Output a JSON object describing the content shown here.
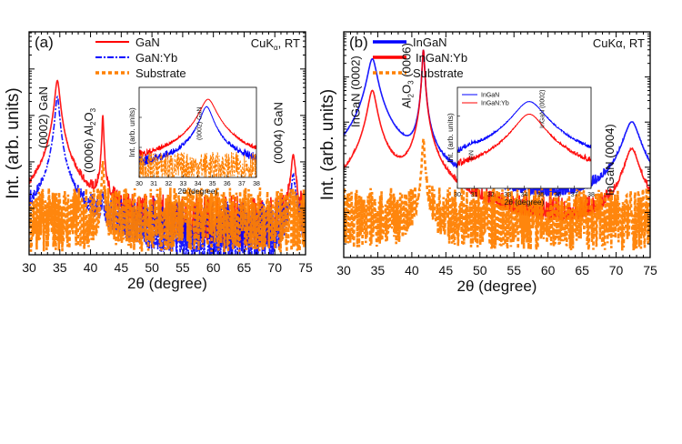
{
  "chart_data": [
    {
      "type": "line",
      "panel_label": "(a)",
      "condition": {
        "main": "CuK",
        "sub": "α",
        "rest": ", RT"
      },
      "xlabel": "2θ (degree)",
      "ylabel": "Int. (arb. units)",
      "xlim": [
        30,
        75
      ],
      "xticks": [
        "30",
        "35",
        "40",
        "45",
        "50",
        "55",
        "60",
        "65",
        "70",
        "75"
      ],
      "yscale": "log",
      "ylim_log10": [
        0,
        4.8
      ],
      "ytick_labels": false,
      "legend": "top-center",
      "series": [
        {
          "name": "GaN",
          "color": "#ff0000",
          "style": "solid",
          "background_log10": 0.45,
          "peaks": [
            {
              "center": 34.6,
              "log10_height": 3.75,
              "width": 0.35
            },
            {
              "center": 42.0,
              "log10_height": 3.0,
              "width": 0.12
            },
            {
              "center": 73.0,
              "log10_height": 2.15,
              "width": 0.3
            }
          ]
        },
        {
          "name": "GaN:Yb",
          "color": "#0000ff",
          "style": "dash-dot",
          "background_log10": 0.35,
          "peaks": [
            {
              "center": 34.6,
              "log10_height": 3.4,
              "width": 0.3
            },
            {
              "center": 42.0,
              "log10_height": 1.2,
              "width": 0.12
            },
            {
              "center": 73.0,
              "log10_height": 1.7,
              "width": 0.3
            }
          ]
        },
        {
          "name": "Substrate",
          "color": "#ff8000",
          "style": "dotted",
          "background_log10": 0.75,
          "peaks": [
            {
              "center": 42.0,
              "log10_height": 2.0,
              "width": 0.12
            }
          ]
        }
      ],
      "annotations": [
        {
          "text": "(0002) GaN",
          "x": 34.6
        },
        {
          "parts": [
            "(0006) Al",
            "2",
            "O",
            "3"
          ],
          "x": 42.0
        },
        {
          "text": "(0004) GaN",
          "x": 73.0
        }
      ],
      "inset": {
        "xlabel": "2θ (degree)",
        "ylabel": "Int. (arb. units)",
        "xlim": [
          30,
          38
        ],
        "xticks": [
          "30",
          "31",
          "32",
          "33",
          "34",
          "35",
          "36",
          "37",
          "38"
        ],
        "yscale": "log",
        "annotation": "(0002) GaN",
        "series": [
          {
            "name": "GaN",
            "color": "#ff0000",
            "peaks": [
              {
                "center": 34.7,
                "log10_height": 2.6,
                "width": 0.45
              }
            ],
            "background_log10": 0.3
          },
          {
            "name": "GaN:Yb",
            "color": "#0000ff",
            "peaks": [
              {
                "center": 34.6,
                "log10_height": 2.35,
                "width": 0.35
              }
            ],
            "background_log10": 0.3
          },
          {
            "name": "Substrate",
            "color": "#ff8000",
            "peaks": [],
            "background_log10": 0.35
          }
        ]
      }
    },
    {
      "type": "line",
      "panel_label": "(b)",
      "condition": {
        "main": "CuKα",
        "sub": "",
        "rest": ", RT"
      },
      "xlabel": "2θ (degree)",
      "ylabel": "Int. (arb. units)",
      "xlim": [
        30,
        75
      ],
      "xticks": [
        "30",
        "35",
        "40",
        "45",
        "50",
        "55",
        "60",
        "65",
        "70",
        "75"
      ],
      "yscale": "log",
      "ylim_log10": [
        0,
        5
      ],
      "ytick_labels": false,
      "legend": "top-center",
      "series": [
        {
          "name": "InGaN",
          "color": "#0000ff",
          "style": "solid",
          "background_log10": 0.7,
          "peaks": [
            {
              "center": 34.2,
              "log10_height": 4.4,
              "width": 0.6
            },
            {
              "center": 41.7,
              "log10_height": 4.6,
              "width": 0.15
            },
            {
              "center": 72.3,
              "log10_height": 3.0,
              "width": 1.0
            }
          ]
        },
        {
          "name": "InGaN:Yb",
          "color": "#ff0000",
          "style": "solid",
          "background_log10": 0.45,
          "peaks": [
            {
              "center": 34.2,
              "log10_height": 3.7,
              "width": 0.55
            },
            {
              "center": 41.7,
              "log10_height": 4.6,
              "width": 0.15
            },
            {
              "center": 72.3,
              "log10_height": 2.4,
              "width": 0.9
            }
          ]
        },
        {
          "name": "Substrate",
          "color": "#ff8000",
          "style": "dotted",
          "background_log10": 0.85,
          "peaks": [
            {
              "center": 41.7,
              "log10_height": 2.6,
              "width": 0.15
            }
          ]
        }
      ],
      "annotations": [
        {
          "text": "InGaN (0002)",
          "x": 34.2
        },
        {
          "parts": [
            "Al",
            "2",
            "O",
            "3",
            " (0006)"
          ],
          "x": 41.7
        },
        {
          "text": "InGaN (0004)",
          "x": 72.3
        }
      ],
      "inset": {
        "xlabel": "2θ (degree)",
        "ylabel": "Int. (arb. units)",
        "xlim": [
          30,
          38
        ],
        "xticks": [
          "30",
          "31",
          "32",
          "33",
          "34",
          "35",
          "36",
          "37",
          "38"
        ],
        "yscale": "log",
        "annotations": [
          "InN",
          "InGaN (0002)"
        ],
        "series": [
          {
            "name": "InGaN",
            "color": "#0000ff",
            "peaks": [
              {
                "center": 34.3,
                "log10_height": 2.4,
                "width": 0.8
              },
              {
                "center": 30.9,
                "log10_height": 0.45,
                "width": 0.3
              }
            ],
            "background_log10": 0.4
          },
          {
            "name": "InGaN:Yb",
            "color": "#ff0000",
            "peaks": [
              {
                "center": 34.3,
                "log10_height": 2.05,
                "width": 0.75
              }
            ],
            "background_log10": 0.15
          }
        ]
      }
    }
  ]
}
